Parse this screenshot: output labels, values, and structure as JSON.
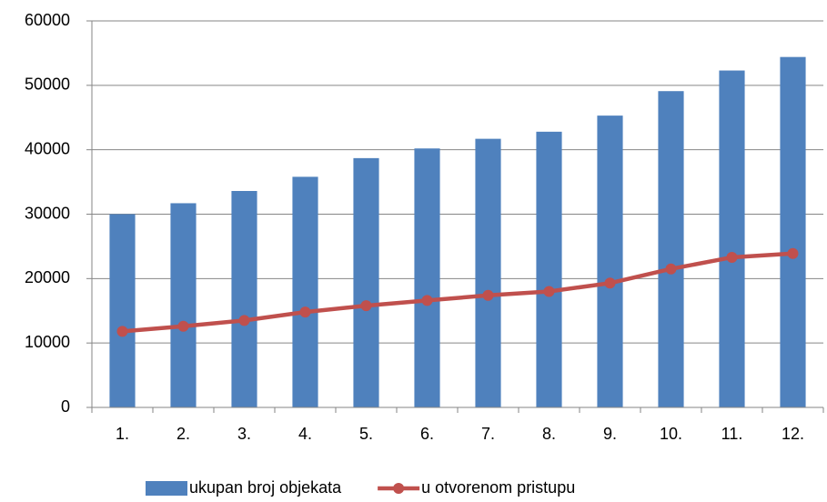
{
  "chart_data": {
    "type": "bar_line",
    "categories": [
      "1.",
      "2.",
      "3.",
      "4.",
      "5.",
      "6.",
      "7.",
      "8.",
      "9.",
      "10.",
      "11.",
      "12."
    ],
    "series": [
      {
        "name": "ukupan broj objekata",
        "type": "bar",
        "color": "#4f81bd",
        "values": [
          30000,
          31700,
          33600,
          35800,
          38700,
          40200,
          41700,
          42800,
          45300,
          49100,
          52300,
          54400
        ]
      },
      {
        "name": "u otvorenom pristupu",
        "type": "line",
        "color": "#c0504d",
        "values": [
          11800,
          12600,
          13500,
          14800,
          15800,
          16600,
          17400,
          18000,
          19300,
          21500,
          23300,
          23900
        ]
      }
    ],
    "ylim": [
      0,
      60000
    ],
    "yticks": [
      0,
      10000,
      20000,
      30000,
      40000,
      50000,
      60000
    ],
    "grid": true,
    "legend": "bottom"
  }
}
